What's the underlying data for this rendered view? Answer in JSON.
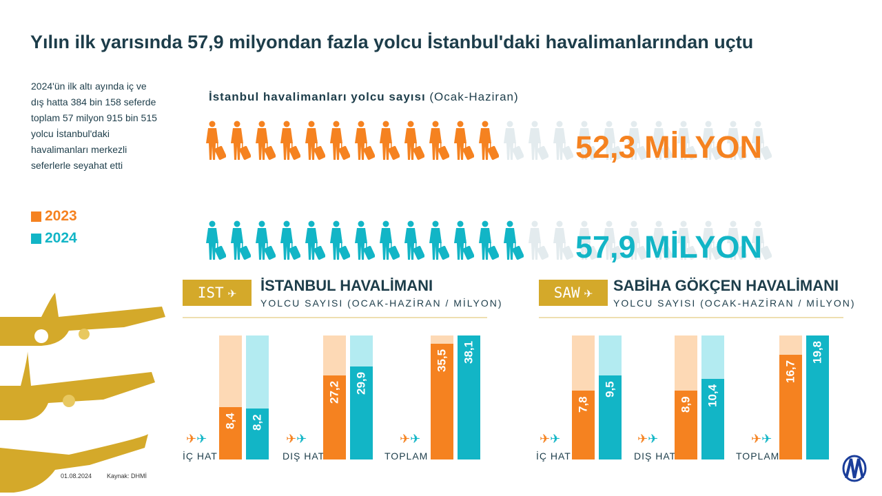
{
  "title": "Yılın ilk yarısında 57,9 milyondan fazla yolcu İstanbul'daki havalimanlarından uçtu",
  "side_text": "2024'ün ilk altı ayında iç ve dış hatta 384 bin 158 seferde toplam 57 milyon 915 bin 515 yolcu İstanbul'daki havalimanları merkezli seferlerle seyahat etti",
  "legend": [
    {
      "label": "2023",
      "color": "#f58220"
    },
    {
      "label": "2024",
      "color": "#12b5c6"
    }
  ],
  "pictogram": {
    "title_bold": "İstanbul havalimanları yolcu sayısı",
    "title_light": " (Ocak-Haziran)",
    "rows": [
      {
        "year": "2023",
        "label": "52,3 MİLYON",
        "filled": 12,
        "total": 23,
        "color": "#f58220"
      },
      {
        "year": "2024",
        "label": "57,9 MİLYON",
        "filled": 13,
        "total": 23,
        "color": "#12b5c6"
      }
    ],
    "empty_color": "#e3ebee"
  },
  "chart_data": [
    {
      "type": "bar",
      "airport_code": "IST",
      "title": "İSTANBUL HAVALİMANI",
      "subtitle": "YOLCU SAYISI (OCAK-HAZİRAN / MİLYON)",
      "categories": [
        "İÇ HAT",
        "DIŞ HAT",
        "TOPLAM"
      ],
      "series": [
        {
          "name": "2023",
          "values": [
            8.4,
            27.2,
            35.5
          ],
          "labels": [
            "8,4",
            "27,2",
            "35,5"
          ]
        },
        {
          "name": "2024",
          "values": [
            8.2,
            29.9,
            38.1
          ],
          "labels": [
            "8,2",
            "29,9",
            "38,1"
          ]
        }
      ],
      "ymax": [
        20,
        40,
        38.1
      ]
    },
    {
      "type": "bar",
      "airport_code": "SAW",
      "title": "SABİHA GÖKÇEN HAVALİMANI",
      "subtitle": "YOLCU SAYISI (OCAK-HAZİRAN / MİLYON)",
      "categories": [
        "İÇ HAT",
        "DIŞ HAT",
        "TOPLAM"
      ],
      "series": [
        {
          "name": "2023",
          "values": [
            7.8,
            8.9,
            16.7
          ],
          "labels": [
            "7,8",
            "8,9",
            "16,7"
          ]
        },
        {
          "name": "2024",
          "values": [
            9.5,
            10.4,
            19.8
          ],
          "labels": [
            "9,5",
            "10,4",
            "19,8"
          ]
        }
      ],
      "ymax": [
        14,
        16,
        19.8
      ]
    }
  ],
  "colors": {
    "c2023": "#f58220",
    "c2023_light": "#fdd9b5",
    "c2024": "#12b5c6",
    "c2024_light": "#b3ebf1",
    "gold": "#d4a92a",
    "text": "#1d3d4a"
  },
  "footer": {
    "date": "01.08.2024",
    "source": "Kaynak: DHMİ"
  }
}
